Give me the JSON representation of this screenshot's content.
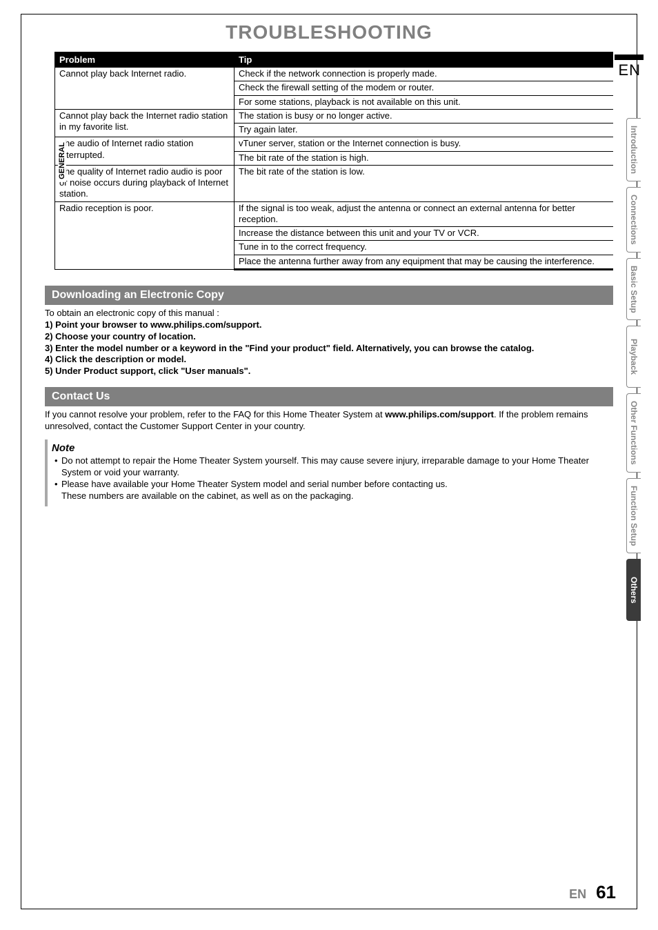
{
  "title": "TROUBLESHOOTING",
  "lang_label": "EN",
  "tabs": [
    {
      "label": "Introduction",
      "active": false
    },
    {
      "label": "Connections",
      "active": false
    },
    {
      "label": "Basic Setup",
      "active": false
    },
    {
      "label": "Playback",
      "active": false
    },
    {
      "label": "Other Functions",
      "active": false
    },
    {
      "label": "Function Setup",
      "active": false
    },
    {
      "label": "Others",
      "active": true
    }
  ],
  "table": {
    "vert_label": "GENERAL",
    "headers": {
      "problem": "Problem",
      "tip": "Tip"
    },
    "rows": [
      {
        "problem": "Cannot play back Internet radio.",
        "tip": "Check if the network connection is properly made.",
        "span": 3
      },
      {
        "tip": "Check the firewall setting of the modem or router."
      },
      {
        "tip": "For some stations, playback is not available on this unit."
      },
      {
        "problem": "Cannot play back the Internet radio station in my favorite list.",
        "tip": "The station is busy or no longer active.",
        "span": 2
      },
      {
        "tip": "Try again later."
      },
      {
        "problem": "The audio of Internet radio station interrupted.",
        "tip": "vTuner server, station or the Internet connection is busy.",
        "span": 2
      },
      {
        "tip": "The bit rate of the station is high."
      },
      {
        "problem": "The quality of Internet radio audio is poor or noise occurs during playback of Internet station.",
        "tip": "The bit rate of the station is low.",
        "span": 1
      },
      {
        "problem": "Radio reception is poor.",
        "tip": "If the signal is too weak, adjust the antenna or connect an external antenna for better reception.",
        "span": 4
      },
      {
        "tip": "Increase the distance between this unit and your TV or VCR."
      },
      {
        "tip": "Tune in to the correct frequency."
      },
      {
        "tip": "Place the antenna further away from any equipment that may be causing the interference."
      }
    ]
  },
  "download": {
    "heading": "Downloading an Electronic Copy",
    "intro": "To obtain an electronic copy of this manual :",
    "steps": [
      "1)  Point your browser to www.philips.com/support.",
      "2)  Choose your country of location.",
      "3)  Enter the model number or a keyword in the \"Find your product\" field. Alternatively, you can browse the catalog.",
      "4)  Click the description or model.",
      "5)  Under Product support, click \"User manuals\"."
    ]
  },
  "contact": {
    "heading": "Contact Us",
    "body_prefix": "If you cannot resolve your problem, refer to the FAQ for this Home Theater System at ",
    "body_url": "www.philips.com/support",
    "body_suffix": ". If the problem remains unresolved, contact the Customer Support Center in your country."
  },
  "note": {
    "title": "Note",
    "items": [
      "Do not attempt to repair the Home Theater System yourself. This may cause severe injury, irreparable damage to your Home Theater System or void your warranty.",
      "Please have available your Home Theater System model and serial number before contacting us.\nThese numbers are available on the cabinet, as well as on the packaging."
    ]
  },
  "footer": {
    "lang": "EN",
    "page": "61"
  }
}
